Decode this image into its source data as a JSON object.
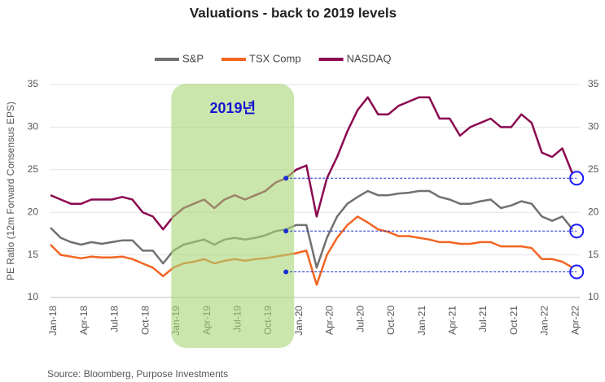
{
  "chart_data": {
    "type": "line",
    "title": "Valuations - back to 2019 levels",
    "y_label": "PE Ratio  (12m Forward Consensus EPS)",
    "source": "Source: Bloomberg, Purpose Investments",
    "annotation": "2019년",
    "categories": [
      "Jan-18",
      null,
      null,
      "Apr-18",
      null,
      null,
      "Jul-18",
      null,
      null,
      "Oct-18",
      null,
      null,
      "Jan-19",
      null,
      null,
      "Apr-19",
      null,
      null,
      "Jul-19",
      null,
      null,
      "Oct-19",
      null,
      null,
      "Jan-20",
      null,
      null,
      "Apr-20",
      null,
      null,
      "Jul-20",
      null,
      null,
      "Oct-20",
      null,
      null,
      "Jan-21",
      null,
      null,
      "Apr-21",
      null,
      null,
      "Jul-21",
      null,
      null,
      "Oct-21",
      null,
      null,
      "Jan-22",
      null,
      null,
      "Apr-22"
    ],
    "series": [
      {
        "name": "S&P",
        "color": "#707070",
        "values": [
          18.2,
          17,
          16.5,
          16.2,
          16.5,
          16.3,
          16.5,
          16.7,
          16.7,
          15.5,
          15.5,
          14,
          15.5,
          16.2,
          16.5,
          16.8,
          16.2,
          16.8,
          17,
          16.8,
          17,
          17.3,
          17.8,
          18,
          18.5,
          18.5,
          13.5,
          17,
          19.5,
          21,
          21.8,
          22.5,
          22,
          22,
          22.2,
          22.3,
          22.5,
          22.5,
          21.8,
          21.5,
          21,
          21,
          21.3,
          21.5,
          20.5,
          20.8,
          21.3,
          21,
          19.5,
          19,
          19.5,
          18
        ]
      },
      {
        "name": "TSX Comp",
        "color": "#f26522",
        "values": [
          16.2,
          15,
          14.8,
          14.6,
          14.8,
          14.7,
          14.7,
          14.8,
          14.5,
          14,
          13.5,
          12.5,
          13.5,
          14,
          14.2,
          14.5,
          14,
          14.3,
          14.5,
          14.3,
          14.5,
          14.6,
          14.8,
          15,
          15.2,
          15.5,
          11.5,
          15,
          17,
          18.5,
          19.5,
          18.8,
          18,
          17.7,
          17.2,
          17.2,
          17,
          16.8,
          16.5,
          16.5,
          16.3,
          16.3,
          16.5,
          16.5,
          16,
          16,
          16,
          15.8,
          14.5,
          14.5,
          14.2,
          13.5
        ]
      },
      {
        "name": "NASDAQ",
        "color": "#8b0a50",
        "values": [
          22,
          21.5,
          21,
          21,
          21.5,
          21.5,
          21.5,
          21.8,
          21.5,
          20,
          19.5,
          18,
          19.5,
          20.5,
          21,
          21.5,
          20.5,
          21.5,
          22,
          21.5,
          22,
          22.5,
          23.5,
          24,
          25,
          25.5,
          19.5,
          24,
          26.5,
          29.5,
          32,
          33.5,
          31.5,
          31.5,
          32.5,
          33,
          33.5,
          33.5,
          31,
          31,
          29,
          30,
          30.5,
          31,
          30,
          30,
          31.5,
          30.5,
          27,
          26.5,
          27.5,
          24.5
        ]
      }
    ],
    "reference_lines": [
      24,
      17.8,
      13
    ],
    "ylim": [
      10,
      35
    ],
    "yticks": [
      10,
      15,
      20,
      25,
      30,
      35
    ],
    "y2lim": [
      10,
      35
    ],
    "y2ticks": [
      10,
      15,
      20,
      25,
      30,
      35
    ],
    "grid": true
  }
}
